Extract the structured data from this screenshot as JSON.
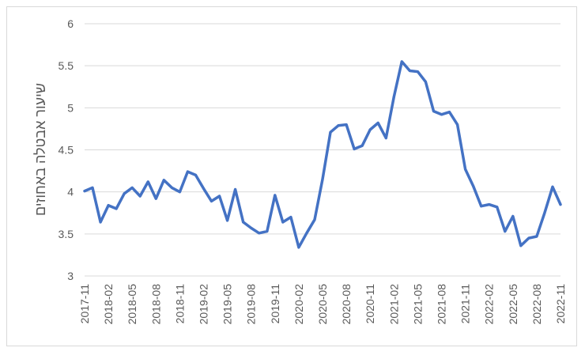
{
  "chart_data": {
    "type": "line",
    "title": "",
    "xlabel": "",
    "ylabel": "שיעור אבטלה באחוזים",
    "ylim": [
      3,
      6
    ],
    "yticks": [
      "3",
      "3.5",
      "4",
      "4.5",
      "5",
      "5.5",
      "6"
    ],
    "grid": "horizontal",
    "legend": "none",
    "line_color": "#4472C4",
    "xtick_labels": [
      "2017-11",
      "2018-02",
      "2018-05",
      "2018-08",
      "2018-11",
      "2019-02",
      "2019-05",
      "2019-08",
      "2019-11",
      "2020-02",
      "2020-05",
      "2020-08",
      "2020-11",
      "2021-02",
      "2021-05",
      "2021-08",
      "2021-11",
      "2022-02",
      "2022-05",
      "2022-08",
      "2022-11"
    ],
    "series": [
      {
        "x": [
          "2017-11",
          "2017-12",
          "2018-01",
          "2018-02",
          "2018-03",
          "2018-04",
          "2018-05",
          "2018-06",
          "2018-07",
          "2018-08",
          "2018-09",
          "2018-10",
          "2018-11",
          "2018-12",
          "2019-01",
          "2019-02",
          "2019-03",
          "2019-04",
          "2019-05",
          "2019-06",
          "2019-07",
          "2019-08",
          "2019-09",
          "2019-10",
          "2019-11",
          "2019-12",
          "2020-01",
          "2020-02",
          "2020-03",
          "2020-04",
          "2020-05",
          "2020-06",
          "2020-07",
          "2020-08",
          "2020-09",
          "2020-10",
          "2020-11",
          "2020-12",
          "2021-01",
          "2021-02",
          "2021-03",
          "2021-04",
          "2021-05",
          "2021-06",
          "2021-07",
          "2021-08",
          "2021-09",
          "2021-10",
          "2021-11",
          "2021-12",
          "2022-01",
          "2022-02",
          "2022-03",
          "2022-04",
          "2022-05",
          "2022-06",
          "2022-07",
          "2022-08",
          "2022-09",
          "2022-10",
          "2022-11"
        ],
        "values": [
          4.01,
          4.05,
          3.64,
          3.84,
          3.8,
          3.98,
          4.05,
          3.95,
          4.12,
          3.92,
          4.14,
          4.05,
          4.0,
          4.24,
          4.2,
          4.04,
          3.89,
          3.95,
          3.66,
          4.03,
          3.64,
          3.57,
          3.51,
          3.53,
          3.96,
          3.64,
          3.7,
          3.34,
          3.51,
          3.67,
          4.15,
          4.71,
          4.79,
          4.8,
          4.51,
          4.55,
          4.74,
          4.82,
          4.64,
          5.13,
          5.55,
          5.44,
          5.43,
          5.31,
          4.96,
          4.92,
          4.95,
          4.8,
          4.27,
          4.07,
          3.83,
          3.85,
          3.82,
          3.53,
          3.71,
          3.36,
          3.45,
          3.47,
          3.75,
          4.06,
          3.85
        ]
      }
    ]
  }
}
